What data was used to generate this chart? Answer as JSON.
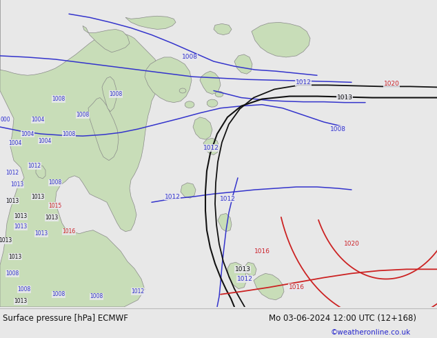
{
  "fig_width": 6.34,
  "fig_height": 4.9,
  "dpi": 100,
  "land_color": "#c8ddb8",
  "sea_color": "#e8e8ee",
  "footer_bg": "#e8e8e8",
  "land_edge_color": "#888888",
  "blue": "#3333cc",
  "black": "#111111",
  "red": "#cc2222",
  "gray": "#999999",
  "footer_left": "Surface pressure [hPa] ECMWF",
  "footer_right": "Mo 03-06-2024 12:00 UTC (12+168)",
  "footer_credit": "©weatheronline.co.uk",
  "footer_font_size": 8.5,
  "credit_font_size": 7.5,
  "label_font_size": 6.5
}
